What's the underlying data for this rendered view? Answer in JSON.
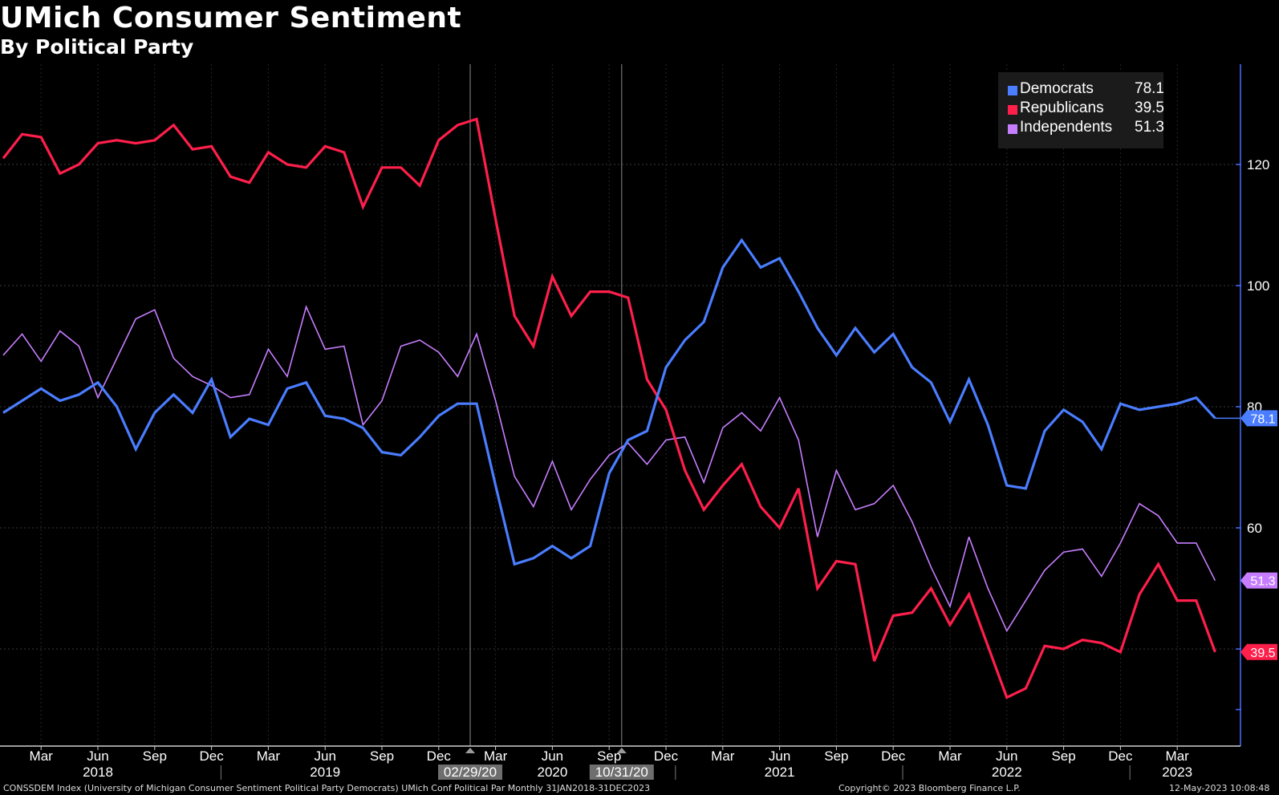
{
  "header": {
    "title": "UMich Consumer Sentiment",
    "subtitle": "By Political Party"
  },
  "footer": {
    "source": "CONSSDEM Index (University of Michigan Consumer Sentiment Political Party Democrats) UMich Conf Political Par  Monthly 31JAN2018-31DEC2023",
    "copyright": "Copyright© 2023 Bloomberg Finance L.P.",
    "timestamp": "12-May-2023 10:08:48"
  },
  "colors": {
    "background": "#000000",
    "democrats": "#4a7dff",
    "republicans": "#ff1f4b",
    "independents": "#c77dff",
    "axis": "#4a6cff",
    "grid": "#3a3a3a"
  },
  "chart_data": {
    "type": "line",
    "title": "UMich Consumer Sentiment",
    "subtitle": "By Political Party",
    "xlabel": "",
    "ylabel": "",
    "ylim": [
      25,
      136
    ],
    "yticks": [
      40,
      60,
      80,
      100,
      120
    ],
    "ytick_labels_shown": [
      "60",
      "80",
      "100",
      "120"
    ],
    "grid": true,
    "legend_position": "top-right",
    "x_start": "Jan 2018",
    "x_end": "Apr 2023",
    "month_labels": [
      {
        "label": "Mar",
        "index": 2
      },
      {
        "label": "Jun",
        "index": 5
      },
      {
        "label": "Sep",
        "index": 8
      },
      {
        "label": "Dec",
        "index": 11
      },
      {
        "label": "Mar",
        "index": 14
      },
      {
        "label": "Jun",
        "index": 17
      },
      {
        "label": "Sep",
        "index": 20
      },
      {
        "label": "Dec",
        "index": 23
      },
      {
        "label": "Mar",
        "index": 26
      },
      {
        "label": "Jun",
        "index": 29
      },
      {
        "label": "Sep",
        "index": 32
      },
      {
        "label": "Dec",
        "index": 35
      },
      {
        "label": "Mar",
        "index": 38
      },
      {
        "label": "Jun",
        "index": 41
      },
      {
        "label": "Sep",
        "index": 44
      },
      {
        "label": "Dec",
        "index": 47
      },
      {
        "label": "Mar",
        "index": 50
      },
      {
        "label": "Jun",
        "index": 53
      },
      {
        "label": "Sep",
        "index": 56
      },
      {
        "label": "Dec",
        "index": 59
      },
      {
        "label": "Mar",
        "index": 62
      }
    ],
    "year_labels": [
      {
        "label": "2018",
        "index": 5
      },
      {
        "label": "2019",
        "index": 17
      },
      {
        "label": "2020",
        "index": 29
      },
      {
        "label": "2021",
        "index": 41
      },
      {
        "label": "2022",
        "index": 53
      },
      {
        "label": "2023",
        "index": 62
      }
    ],
    "year_dividers": [
      11,
      23,
      35,
      47,
      59
    ],
    "event_markers": [
      {
        "label": "02/29/20",
        "index": 25
      },
      {
        "label": "10/31/20",
        "index": 33
      }
    ],
    "series": [
      {
        "name": "Democrats",
        "last_value": "78.1",
        "values": [
          79.0,
          81.0,
          83.0,
          81.0,
          82.0,
          84.0,
          80.0,
          73.0,
          79.0,
          82.0,
          79.0,
          84.5,
          75.0,
          78.0,
          77.0,
          83.0,
          84.0,
          78.5,
          78.0,
          76.5,
          72.5,
          72.0,
          75.0,
          78.5,
          80.5,
          80.5,
          67.0,
          54.0,
          55.0,
          57.0,
          55.0,
          57.0,
          69.0,
          74.5,
          76.0,
          86.5,
          91.0,
          94.0,
          103.0,
          107.5,
          103.0,
          104.5,
          99.0,
          93.0,
          88.5,
          93.0,
          89.0,
          92.0,
          86.5,
          84.0,
          77.5,
          84.5,
          77.0,
          67.0,
          66.5,
          76.0,
          79.5,
          77.5,
          73.0,
          80.5,
          79.5,
          80.0,
          80.5,
          81.5,
          78.1
        ]
      },
      {
        "name": "Republicans",
        "last_value": "39.5",
        "values": [
          121.0,
          125.0,
          124.5,
          118.5,
          120.0,
          123.5,
          124.0,
          123.5,
          124.0,
          126.5,
          122.5,
          123.0,
          118.0,
          117.0,
          122.0,
          120.0,
          119.5,
          123.0,
          122.0,
          113.0,
          119.5,
          119.5,
          116.5,
          124.0,
          126.5,
          127.5,
          111.0,
          95.0,
          90.0,
          101.5,
          95.0,
          99.0,
          99.0,
          98.0,
          84.5,
          79.5,
          69.5,
          63.0,
          67.0,
          70.5,
          63.5,
          60.0,
          66.5,
          50.0,
          54.5,
          54.0,
          38.0,
          45.5,
          46.0,
          50.0,
          44.0,
          49.0,
          40.5,
          32.0,
          33.5,
          40.5,
          40.0,
          41.5,
          41.0,
          39.5,
          49.0,
          54.0,
          48.0,
          48.0,
          39.5
        ]
      },
      {
        "name": "Independents",
        "last_value": "51.3",
        "values": [
          88.5,
          92.0,
          87.5,
          92.5,
          90.0,
          81.5,
          88.0,
          94.5,
          96.0,
          88.0,
          85.0,
          83.5,
          81.5,
          82.0,
          89.5,
          85.0,
          96.5,
          89.5,
          90.0,
          77.0,
          81.0,
          90.0,
          91.0,
          89.0,
          85.0,
          92.0,
          81.0,
          68.5,
          63.5,
          71.0,
          63.0,
          68.0,
          72.0,
          74.0,
          70.5,
          74.5,
          75.0,
          67.5,
          76.5,
          79.0,
          76.0,
          81.5,
          74.5,
          58.5,
          69.5,
          63.0,
          64.0,
          67.0,
          61.0,
          53.5,
          47.0,
          58.5,
          50.0,
          43.0,
          48.0,
          53.0,
          56.0,
          56.5,
          52.0,
          57.5,
          64.0,
          62.0,
          57.5,
          57.5,
          51.3
        ]
      }
    ]
  }
}
